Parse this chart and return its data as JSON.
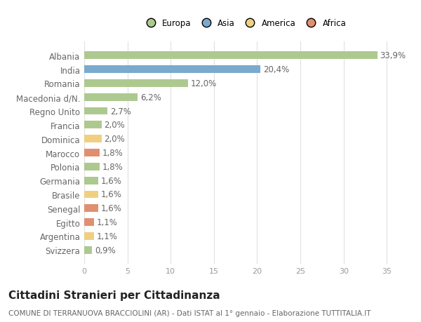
{
  "categories": [
    "Albania",
    "India",
    "Romania",
    "Macedonia d/N.",
    "Regno Unito",
    "Francia",
    "Dominica",
    "Marocco",
    "Polonia",
    "Germania",
    "Brasile",
    "Senegal",
    "Egitto",
    "Argentina",
    "Svizzera"
  ],
  "values": [
    33.9,
    20.4,
    12.0,
    6.2,
    2.7,
    2.0,
    2.0,
    1.8,
    1.8,
    1.6,
    1.6,
    1.6,
    1.1,
    1.1,
    0.9
  ],
  "labels": [
    "33,9%",
    "20,4%",
    "12,0%",
    "6,2%",
    "2,7%",
    "2,0%",
    "2,0%",
    "1,8%",
    "1,8%",
    "1,6%",
    "1,6%",
    "1,6%",
    "1,1%",
    "1,1%",
    "0,9%"
  ],
  "colors": [
    "#adc990",
    "#7aaace",
    "#adc990",
    "#adc990",
    "#adc990",
    "#adc990",
    "#f0d080",
    "#e09070",
    "#adc990",
    "#adc990",
    "#f0d080",
    "#e09070",
    "#e09070",
    "#f0d080",
    "#adc990"
  ],
  "legend_order": [
    "Europa",
    "Asia",
    "America",
    "Africa"
  ],
  "legend_colors": {
    "Europa": "#adc990",
    "Asia": "#7aaace",
    "America": "#f0d080",
    "Africa": "#e09070"
  },
  "xlim": [
    0,
    37
  ],
  "xticks": [
    0,
    5,
    10,
    15,
    20,
    25,
    30,
    35
  ],
  "title": "Cittadini Stranieri per Cittadinanza",
  "subtitle": "COMUNE DI TERRANUOVA BRACCIOLINI (AR) - Dati ISTAT al 1° gennaio - Elaborazione TUTTITALIA.IT",
  "background_color": "#ffffff",
  "plot_bg_color": "#ffffff",
  "bar_height": 0.55,
  "grid_color": "#e0e0e0",
  "label_fontsize": 8.5,
  "tick_fontsize": 8,
  "title_fontsize": 11,
  "subtitle_fontsize": 7.5
}
